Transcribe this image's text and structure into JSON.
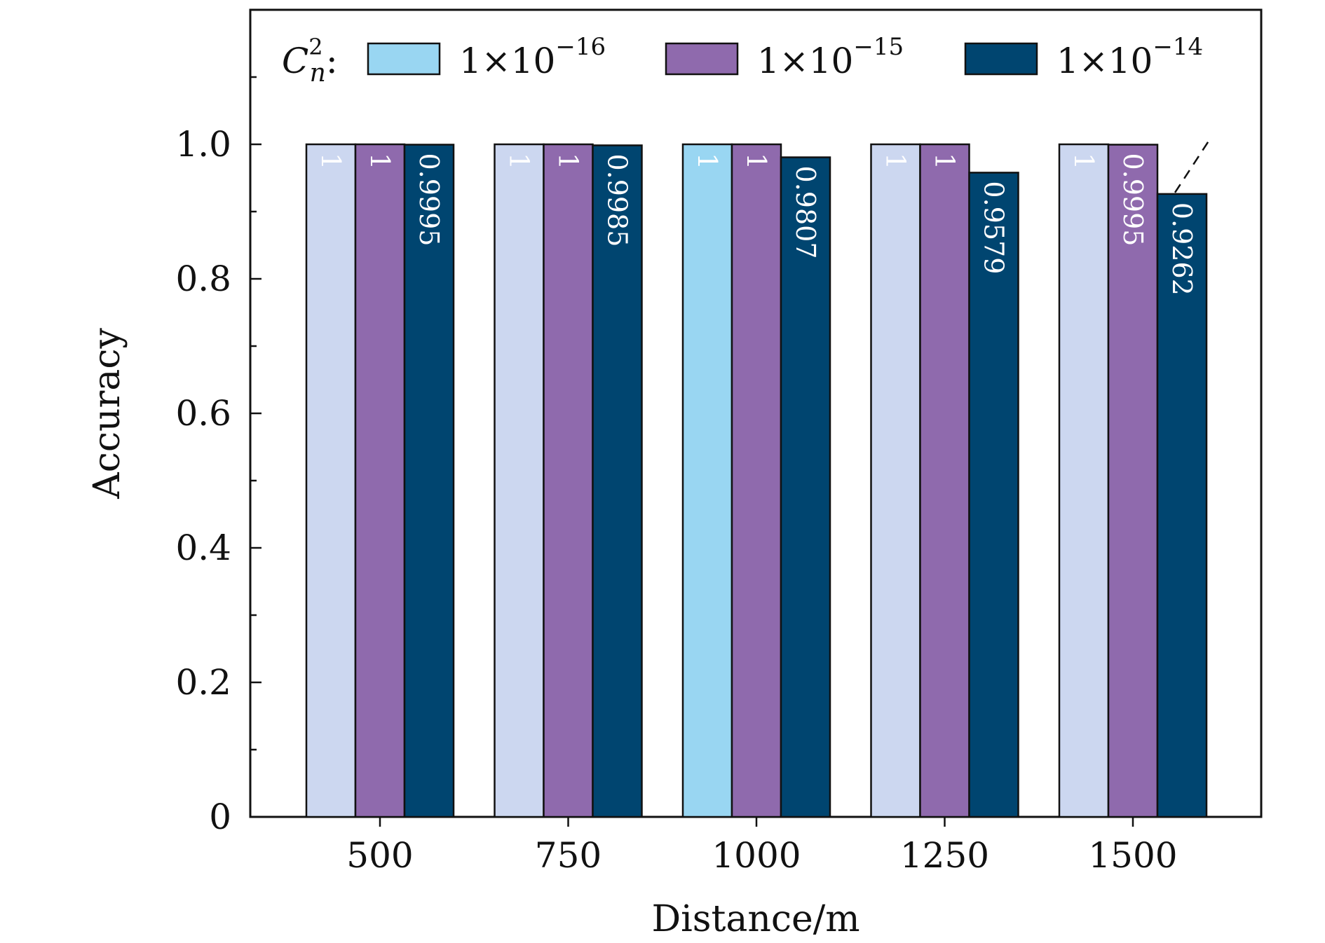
{
  "chart_data": {
    "type": "bar",
    "title": "",
    "xlabel": "Distance/m",
    "ylabel": "Accuracy",
    "categories": [
      "500",
      "750",
      "1000",
      "1250",
      "1500"
    ],
    "ylim": [
      0,
      1.2
    ],
    "yticks": [
      0,
      0.2,
      0.4,
      0.6,
      0.8,
      1.0
    ],
    "ytick_labels": [
      "0",
      "0.2",
      "0.4",
      "0.6",
      "0.8",
      "1.0"
    ],
    "legend": {
      "title_main": "C",
      "title_sub": "n",
      "title_sup": "2",
      "title_suffix": ":",
      "placement": "top"
    },
    "series": [
      {
        "name": "1×10⁻¹⁶",
        "mantissa": "1×10",
        "exponent": "−16",
        "color": "#99d6f2",
        "faded_color": "#ccd7f0",
        "values": [
          1,
          1,
          1,
          1,
          1
        ],
        "labels": [
          "1",
          "1",
          "1",
          "1",
          "1"
        ],
        "highlight_index": 2
      },
      {
        "name": "1×10⁻¹⁵",
        "mantissa": "1×10",
        "exponent": "−15",
        "color": "#8f6aad",
        "values": [
          1,
          1,
          1,
          1,
          0.9995
        ],
        "labels": [
          "1",
          "1",
          "1",
          "1",
          "0.9995"
        ]
      },
      {
        "name": "1×10⁻¹⁴",
        "mantissa": "1×10",
        "exponent": "−14",
        "color": "#004570",
        "values": [
          0.9995,
          0.9985,
          0.9807,
          0.9579,
          0.9262
        ],
        "labels": [
          "0.9995",
          "0.9985",
          "0.9807",
          "0.9579",
          "0.9262"
        ]
      }
    ],
    "grid": false
  }
}
